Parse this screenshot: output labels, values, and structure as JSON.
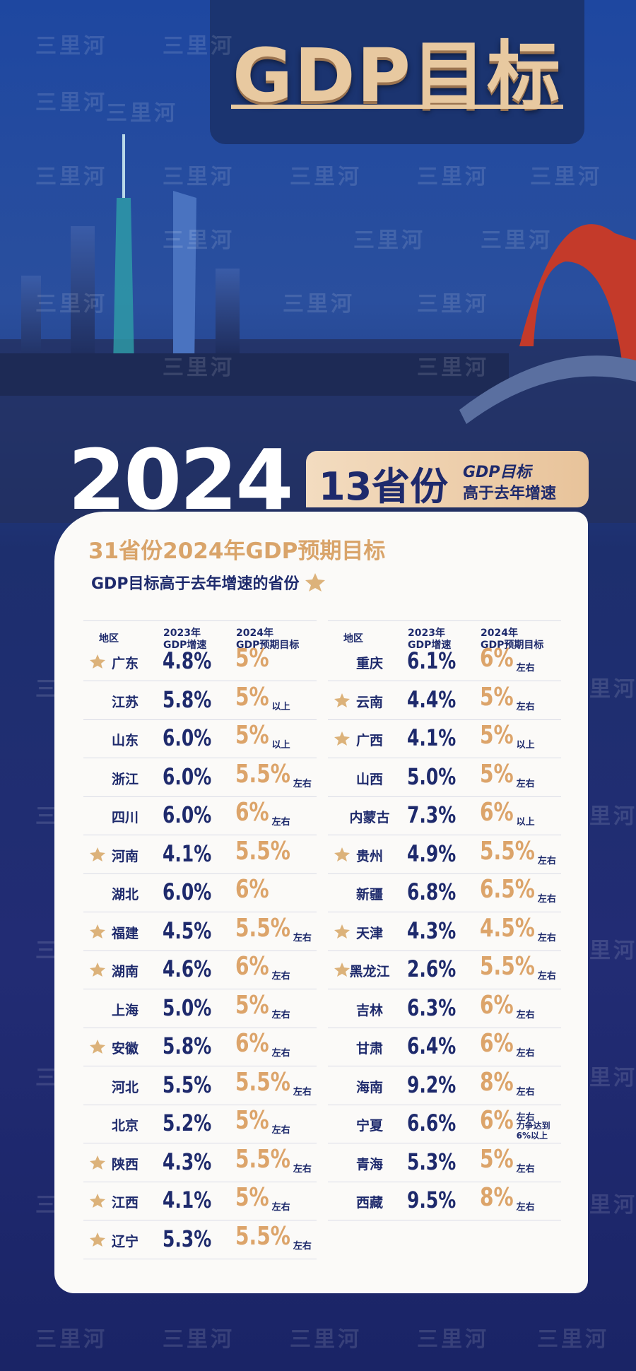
{
  "watermark": "三里河",
  "header": {
    "title": "GDP目标"
  },
  "year": "2024",
  "badge": {
    "main": "13省份",
    "line1": "GDP目标",
    "line2": "高于去年增速"
  },
  "card": {
    "title": "31省份2024年GDP预期目标",
    "subtitle": "GDP目标高于去年增速的省份"
  },
  "columns": [
    [
      "地区"
    ],
    [
      "2023年",
      "GDP增速"
    ],
    [
      "2024年",
      "GDP预期目标"
    ]
  ],
  "tables": [
    {
      "rows": [
        {
          "region": "广东",
          "star": true,
          "gdp2023": "4.8%",
          "target": "5%"
        },
        {
          "region": "江苏",
          "star": false,
          "gdp2023": "5.8%",
          "target": "5%",
          "note": "以上"
        },
        {
          "region": "山东",
          "star": false,
          "gdp2023": "6.0%",
          "target": "5%",
          "note": "以上"
        },
        {
          "region": "浙江",
          "star": false,
          "gdp2023": "6.0%",
          "target": "5.5%",
          "note": "左右"
        },
        {
          "region": "四川",
          "star": false,
          "gdp2023": "6.0%",
          "target": "6%",
          "note": "左右"
        },
        {
          "region": "河南",
          "star": true,
          "gdp2023": "4.1%",
          "target": "5.5%"
        },
        {
          "region": "湖北",
          "star": false,
          "gdp2023": "6.0%",
          "target": "6%"
        },
        {
          "region": "福建",
          "star": true,
          "gdp2023": "4.5%",
          "target": "5.5%",
          "note": "左右"
        },
        {
          "region": "湖南",
          "star": true,
          "gdp2023": "4.6%",
          "target": "6%",
          "note": "左右"
        },
        {
          "region": "上海",
          "star": false,
          "gdp2023": "5.0%",
          "target": "5%",
          "note": "左右"
        },
        {
          "region": "安徽",
          "star": true,
          "gdp2023": "5.8%",
          "target": "6%",
          "note": "左右"
        },
        {
          "region": "河北",
          "star": false,
          "gdp2023": "5.5%",
          "target": "5.5%",
          "note": "左右"
        },
        {
          "region": "北京",
          "star": false,
          "gdp2023": "5.2%",
          "target": "5%",
          "note": "左右"
        },
        {
          "region": "陕西",
          "star": true,
          "gdp2023": "4.3%",
          "target": "5.5%",
          "note": "左右"
        },
        {
          "region": "江西",
          "star": true,
          "gdp2023": "4.1%",
          "target": "5%",
          "note": "左右"
        },
        {
          "region": "辽宁",
          "star": true,
          "gdp2023": "5.3%",
          "target": "5.5%",
          "note": "左右"
        }
      ]
    },
    {
      "rows": [
        {
          "region": "重庆",
          "star": false,
          "gdp2023": "6.1%",
          "target": "6%",
          "note": "左右"
        },
        {
          "region": "云南",
          "star": true,
          "gdp2023": "4.4%",
          "target": "5%",
          "note": "左右"
        },
        {
          "region": "广西",
          "star": true,
          "gdp2023": "4.1%",
          "target": "5%",
          "note": "以上"
        },
        {
          "region": "山西",
          "star": false,
          "gdp2023": "5.0%",
          "target": "5%",
          "note": "左右"
        },
        {
          "region": "内蒙古",
          "star": false,
          "gdp2023": "7.3%",
          "target": "6%",
          "note": "以上"
        },
        {
          "region": "贵州",
          "star": true,
          "gdp2023": "4.9%",
          "target": "5.5%",
          "note": "左右"
        },
        {
          "region": "新疆",
          "star": false,
          "gdp2023": "6.8%",
          "target": "6.5%",
          "note": "左右"
        },
        {
          "region": "天津",
          "star": true,
          "gdp2023": "4.3%",
          "target": "4.5%",
          "note": "左右"
        },
        {
          "region": "黑龙江",
          "star": true,
          "gdp2023": "2.6%",
          "target": "5.5%",
          "note": "左右"
        },
        {
          "region": "吉林",
          "star": false,
          "gdp2023": "6.3%",
          "target": "6%",
          "note": "左右"
        },
        {
          "region": "甘肃",
          "star": false,
          "gdp2023": "6.4%",
          "target": "6%",
          "note": "左右"
        },
        {
          "region": "海南",
          "star": false,
          "gdp2023": "9.2%",
          "target": "8%",
          "note": "左右"
        },
        {
          "region": "宁夏",
          "star": false,
          "gdp2023": "6.6%",
          "target": "6%",
          "note": "左右",
          "extra": "力争达到6%以上"
        },
        {
          "region": "青海",
          "star": false,
          "gdp2023": "5.3%",
          "target": "5%",
          "note": "左右"
        },
        {
          "region": "西藏",
          "star": false,
          "gdp2023": "9.5%",
          "target": "8%",
          "note": "左右"
        }
      ]
    }
  ]
}
